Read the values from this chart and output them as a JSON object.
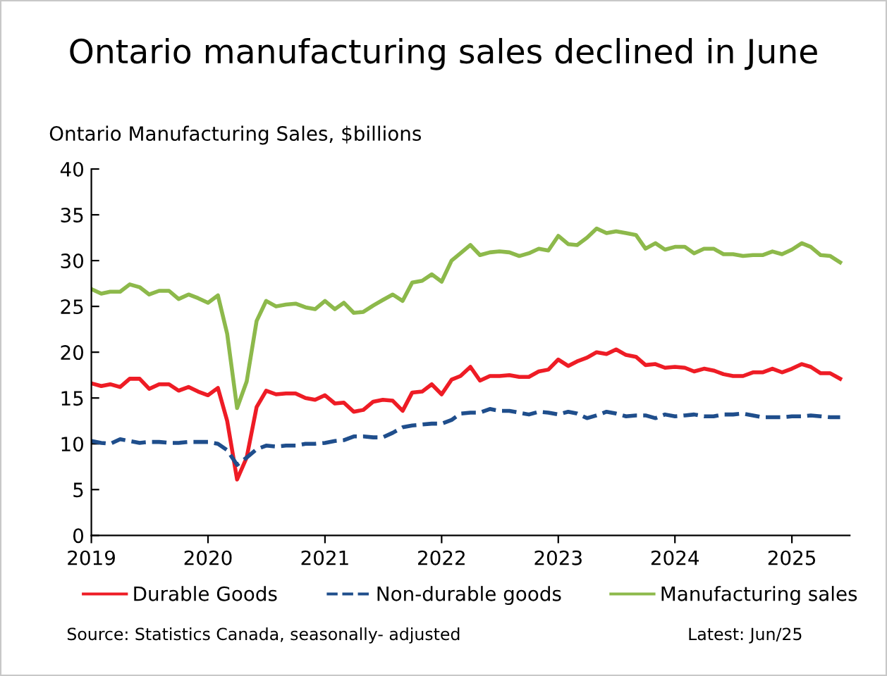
{
  "chart_data": {
    "type": "line",
    "title": "Ontario manufacturing sales declined in June",
    "subtitle": "Ontario Manufacturing Sales, $billions",
    "annotations": [
      "Source: Statistics Canada, seasonally- adjusted",
      "Latest: Jun/25"
    ],
    "x": [
      "2019-01",
      "2019-02",
      "2019-03",
      "2019-04",
      "2019-05",
      "2019-06",
      "2019-07",
      "2019-08",
      "2019-09",
      "2019-10",
      "2019-11",
      "2019-12",
      "2020-01",
      "2020-02",
      "2020-03",
      "2020-04",
      "2020-05",
      "2020-06",
      "2020-07",
      "2020-08",
      "2020-09",
      "2020-10",
      "2020-11",
      "2020-12",
      "2021-01",
      "2021-02",
      "2021-03",
      "2021-04",
      "2021-05",
      "2021-06",
      "2021-07",
      "2021-08",
      "2021-09",
      "2021-10",
      "2021-11",
      "2021-12",
      "2022-01",
      "2022-02",
      "2022-03",
      "2022-04",
      "2022-05",
      "2022-06",
      "2022-07",
      "2022-08",
      "2022-09",
      "2022-10",
      "2022-11",
      "2022-12",
      "2023-01",
      "2023-02",
      "2023-03",
      "2023-04",
      "2023-05",
      "2023-06",
      "2023-07",
      "2023-08",
      "2023-09",
      "2023-10",
      "2023-11",
      "2023-12",
      "2024-01",
      "2024-02",
      "2024-03",
      "2024-04",
      "2024-05",
      "2024-06",
      "2024-07",
      "2024-08",
      "2024-09",
      "2024-10",
      "2024-11",
      "2024-12",
      "2025-01",
      "2025-02",
      "2025-03",
      "2025-04",
      "2025-05",
      "2025-06"
    ],
    "series": [
      {
        "name": "Durable Goods",
        "color": "#ee1c25",
        "line_style": "solid",
        "values": [
          16.6,
          16.3,
          16.5,
          16.2,
          17.1,
          17.1,
          16.0,
          16.5,
          16.5,
          15.8,
          16.2,
          15.7,
          15.3,
          16.1,
          12.5,
          6.1,
          8.5,
          14.0,
          15.8,
          15.4,
          15.5,
          15.5,
          15.0,
          14.8,
          15.3,
          14.4,
          14.5,
          13.5,
          13.7,
          14.6,
          14.8,
          14.7,
          13.6,
          15.6,
          15.7,
          16.5,
          15.4,
          17.0,
          17.4,
          18.4,
          16.9,
          17.4,
          17.4,
          17.5,
          17.3,
          17.3,
          17.9,
          18.1,
          19.2,
          18.5,
          19.0,
          19.4,
          20.0,
          19.8,
          20.3,
          19.7,
          19.5,
          18.6,
          18.7,
          18.3,
          18.4,
          18.3,
          17.9,
          18.2,
          18.0,
          17.6,
          17.4,
          17.4,
          17.8,
          17.8,
          18.2,
          17.8,
          18.2,
          18.7,
          18.4,
          17.7,
          17.7,
          17.1
        ]
      },
      {
        "name": "Non-durable goods",
        "color": "#1f4e8c",
        "line_style": "dashed",
        "values": [
          10.3,
          10.1,
          10.0,
          10.5,
          10.3,
          10.1,
          10.2,
          10.2,
          10.1,
          10.1,
          10.2,
          10.2,
          10.2,
          10.0,
          9.3,
          7.7,
          8.5,
          9.4,
          9.8,
          9.7,
          9.8,
          9.8,
          10.0,
          10.0,
          10.1,
          10.3,
          10.4,
          10.8,
          10.8,
          10.7,
          10.7,
          11.2,
          11.8,
          12.0,
          12.1,
          12.2,
          12.2,
          12.6,
          13.3,
          13.4,
          13.4,
          13.8,
          13.6,
          13.6,
          13.4,
          13.2,
          13.5,
          13.4,
          13.2,
          13.5,
          13.3,
          12.8,
          13.1,
          13.5,
          13.3,
          13.0,
          13.1,
          13.1,
          12.8,
          13.2,
          13.0,
          13.1,
          13.2,
          13.0,
          13.0,
          13.2,
          13.2,
          13.3,
          13.1,
          12.9,
          12.9,
          12.9,
          13.0,
          13.0,
          13.1,
          13.0,
          12.9,
          12.9
        ]
      },
      {
        "name": "Manufacturing sales",
        "color": "#8db94b",
        "line_style": "solid",
        "values": [
          26.9,
          26.4,
          26.6,
          26.6,
          27.4,
          27.1,
          26.3,
          26.7,
          26.7,
          25.8,
          26.3,
          25.9,
          25.4,
          26.2,
          22.0,
          13.9,
          16.8,
          23.4,
          25.6,
          25.0,
          25.2,
          25.3,
          24.9,
          24.7,
          25.6,
          24.7,
          25.4,
          24.3,
          24.4,
          25.1,
          25.7,
          26.3,
          25.6,
          27.6,
          27.8,
          28.5,
          27.7,
          30.0,
          30.8,
          31.7,
          30.6,
          30.9,
          31.0,
          30.9,
          30.5,
          30.8,
          31.3,
          31.1,
          32.7,
          31.8,
          31.7,
          32.5,
          33.5,
          33.0,
          33.2,
          33.0,
          32.8,
          31.3,
          31.9,
          31.2,
          31.5,
          31.5,
          30.8,
          31.3,
          31.3,
          30.7,
          30.7,
          30.5,
          30.6,
          30.6,
          31.0,
          30.7,
          31.2,
          31.9,
          31.5,
          30.6,
          30.5,
          29.8
        ]
      }
    ],
    "xlim": [
      "2019-01",
      "2025-07"
    ],
    "xticks": [
      "2019",
      "2020",
      "2021",
      "2022",
      "2023",
      "2024",
      "2025"
    ],
    "ylim": [
      0,
      40
    ],
    "yticks": [
      0,
      5,
      10,
      15,
      20,
      25,
      30,
      35,
      40
    ],
    "grid": false,
    "legend": "bottom",
    "marker": "none"
  }
}
